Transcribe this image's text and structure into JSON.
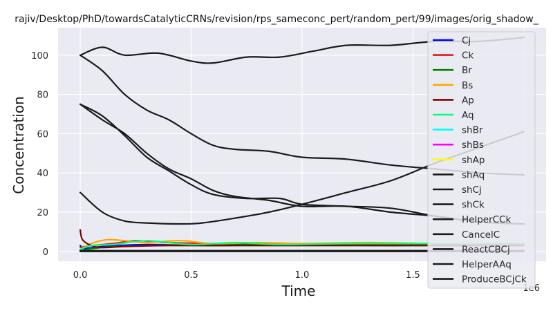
{
  "chart_data": {
    "type": "line",
    "title": "rajiv/Desktop/PhD/towardsCatalyticCRNs/revision/rps_sameconc_pert/random_pert/99/images/orig_shadow_",
    "xlabel": "Time",
    "ylabel": "Concentration",
    "x_offset_label": "1e6",
    "xlim": [
      -0.1,
      2.1
    ],
    "ylim": [
      -5,
      114
    ],
    "xticks": [
      0.0,
      0.5,
      1.0,
      1.5,
      2.0
    ],
    "xtick_labels": [
      "0.0",
      "0.5",
      "1.0",
      "1.5",
      ""
    ],
    "yticks": [
      0,
      20,
      40,
      60,
      80,
      100
    ],
    "ytick_labels": [
      "0",
      "20",
      "40",
      "60",
      "80",
      "100"
    ],
    "grid": true,
    "background": "#eaeaf2",
    "legend_position": "right",
    "series": [
      {
        "name": "Cj",
        "color": "#0000ff",
        "x": [
          0,
          0.02,
          0.1,
          0.3,
          0.6,
          1.0,
          1.4,
          2.0
        ],
        "y": [
          3,
          1.5,
          2.5,
          3.5,
          3,
          3.5,
          3,
          3.5
        ]
      },
      {
        "name": "Ck",
        "color": "#e31a1c",
        "x": [
          0,
          0.05,
          0.15,
          0.25,
          0.4,
          0.6,
          0.8,
          1.0,
          1.3,
          1.6,
          2.0
        ],
        "y": [
          2,
          3,
          4,
          5.5,
          4.5,
          4,
          4,
          3.5,
          3.5,
          3.5,
          3.5
        ]
      },
      {
        "name": "Br",
        "color": "#008000",
        "x": [
          0,
          0.1,
          0.3,
          0.6,
          1.0,
          1.5,
          2.0
        ],
        "y": [
          0.5,
          2,
          3,
          3.5,
          3.5,
          3.5,
          3.5
        ]
      },
      {
        "name": "Bs",
        "color": "#ffa500",
        "x": [
          0,
          0.05,
          0.12,
          0.2,
          0.3,
          0.45,
          0.6,
          0.8,
          1.0,
          1.3,
          1.6,
          2.0
        ],
        "y": [
          1,
          4,
          6,
          5.5,
          4.5,
          5.5,
          4,
          4.5,
          4,
          4.5,
          4,
          4
        ]
      },
      {
        "name": "Ap",
        "color": "#800000",
        "x": [
          0,
          0.01,
          0.05,
          0.1,
          0.2,
          0.4,
          0.8,
          1.2,
          2.0
        ],
        "y": [
          11,
          6,
          3,
          2,
          2.5,
          3,
          3,
          3,
          3
        ]
      },
      {
        "name": "Aq",
        "color": "#00ff7f",
        "x": [
          0,
          0.05,
          0.15,
          0.3,
          0.5,
          0.7,
          0.9,
          1.2,
          1.5,
          2.0
        ],
        "y": [
          1,
          3,
          3.5,
          5.5,
          3.5,
          4.5,
          3.5,
          4,
          4,
          4
        ]
      },
      {
        "name": "shBr",
        "color": "#00ffff",
        "x": [
          0,
          0.5,
          1.0,
          1.5,
          2.0
        ],
        "y": [
          0.3,
          0.3,
          0.3,
          0.3,
          0.3
        ]
      },
      {
        "name": "shBs",
        "color": "#ff00ff",
        "x": [
          0,
          0.5,
          1.0,
          1.5,
          2.0
        ],
        "y": [
          0.2,
          0.2,
          0.2,
          0.2,
          0.2
        ]
      },
      {
        "name": "shAp",
        "color": "#ffff00",
        "x": [
          0,
          0.5,
          1.0,
          1.5,
          2.0
        ],
        "y": [
          0.1,
          0.1,
          0.1,
          0.1,
          0.1
        ]
      },
      {
        "name": "shAq",
        "color": "#1a1a1a",
        "x": [
          0,
          0.1,
          0.2,
          0.35,
          0.5,
          0.6,
          0.75,
          0.9,
          1.05,
          1.2,
          1.4,
          1.6,
          1.8,
          2.0
        ],
        "y": [
          100,
          104,
          100,
          101,
          97,
          96,
          99,
          99,
          102,
          105,
          105,
          107,
          107,
          109
        ]
      },
      {
        "name": "shCj",
        "color": "#1a1a1a",
        "x": [
          0,
          0.1,
          0.2,
          0.3,
          0.4,
          0.5,
          0.6,
          0.7,
          0.85,
          1.0,
          1.2,
          1.4,
          1.6,
          1.8,
          2.0
        ],
        "y": [
          100,
          92,
          80,
          72,
          67,
          60,
          54,
          52,
          51,
          48,
          47,
          44,
          42,
          40,
          39
        ]
      },
      {
        "name": "shCk",
        "color": "#1a1a1a",
        "x": [
          0,
          0.1,
          0.2,
          0.3,
          0.4,
          0.5,
          0.6,
          0.7,
          0.85,
          1.0,
          1.2,
          1.4,
          1.6,
          1.8,
          2.0
        ],
        "y": [
          75,
          67,
          60,
          50,
          42,
          37,
          31,
          28,
          26,
          23,
          23,
          20,
          18,
          15,
          14
        ]
      },
      {
        "name": "HelperCCk",
        "color": "#1a1a1a",
        "x": [
          0,
          0.1,
          0.2,
          0.3,
          0.4,
          0.5,
          0.6,
          0.75,
          0.9,
          1.0,
          1.2,
          1.4,
          1.6,
          1.8,
          2.0
        ],
        "y": [
          75,
          69,
          59,
          48,
          41,
          34,
          29,
          27,
          27,
          24,
          23,
          22,
          18,
          15,
          14
        ]
      },
      {
        "name": "CancelC",
        "color": "#1a1a1a",
        "x": [
          0,
          0.1,
          0.2,
          0.3,
          0.45,
          0.55,
          0.7,
          0.85,
          1.0,
          1.2,
          1.4,
          1.6,
          1.8,
          2.0
        ],
        "y": [
          30,
          20,
          15.5,
          14.5,
          14,
          14.5,
          17,
          20,
          24,
          30,
          36,
          45,
          53,
          61
        ]
      },
      {
        "name": "ReactCBCj",
        "color": "#1a1a1a",
        "x": [
          0,
          2.0
        ],
        "y": [
          0.4,
          0.4
        ]
      },
      {
        "name": "HelperAAq",
        "color": "#1a1a1a",
        "x": [
          0,
          2.0
        ],
        "y": [
          0.2,
          0.2
        ]
      },
      {
        "name": "ProduceBCjCk",
        "color": "#1a1a1a",
        "x": [
          0,
          2.0
        ],
        "y": [
          0,
          0
        ]
      }
    ]
  }
}
